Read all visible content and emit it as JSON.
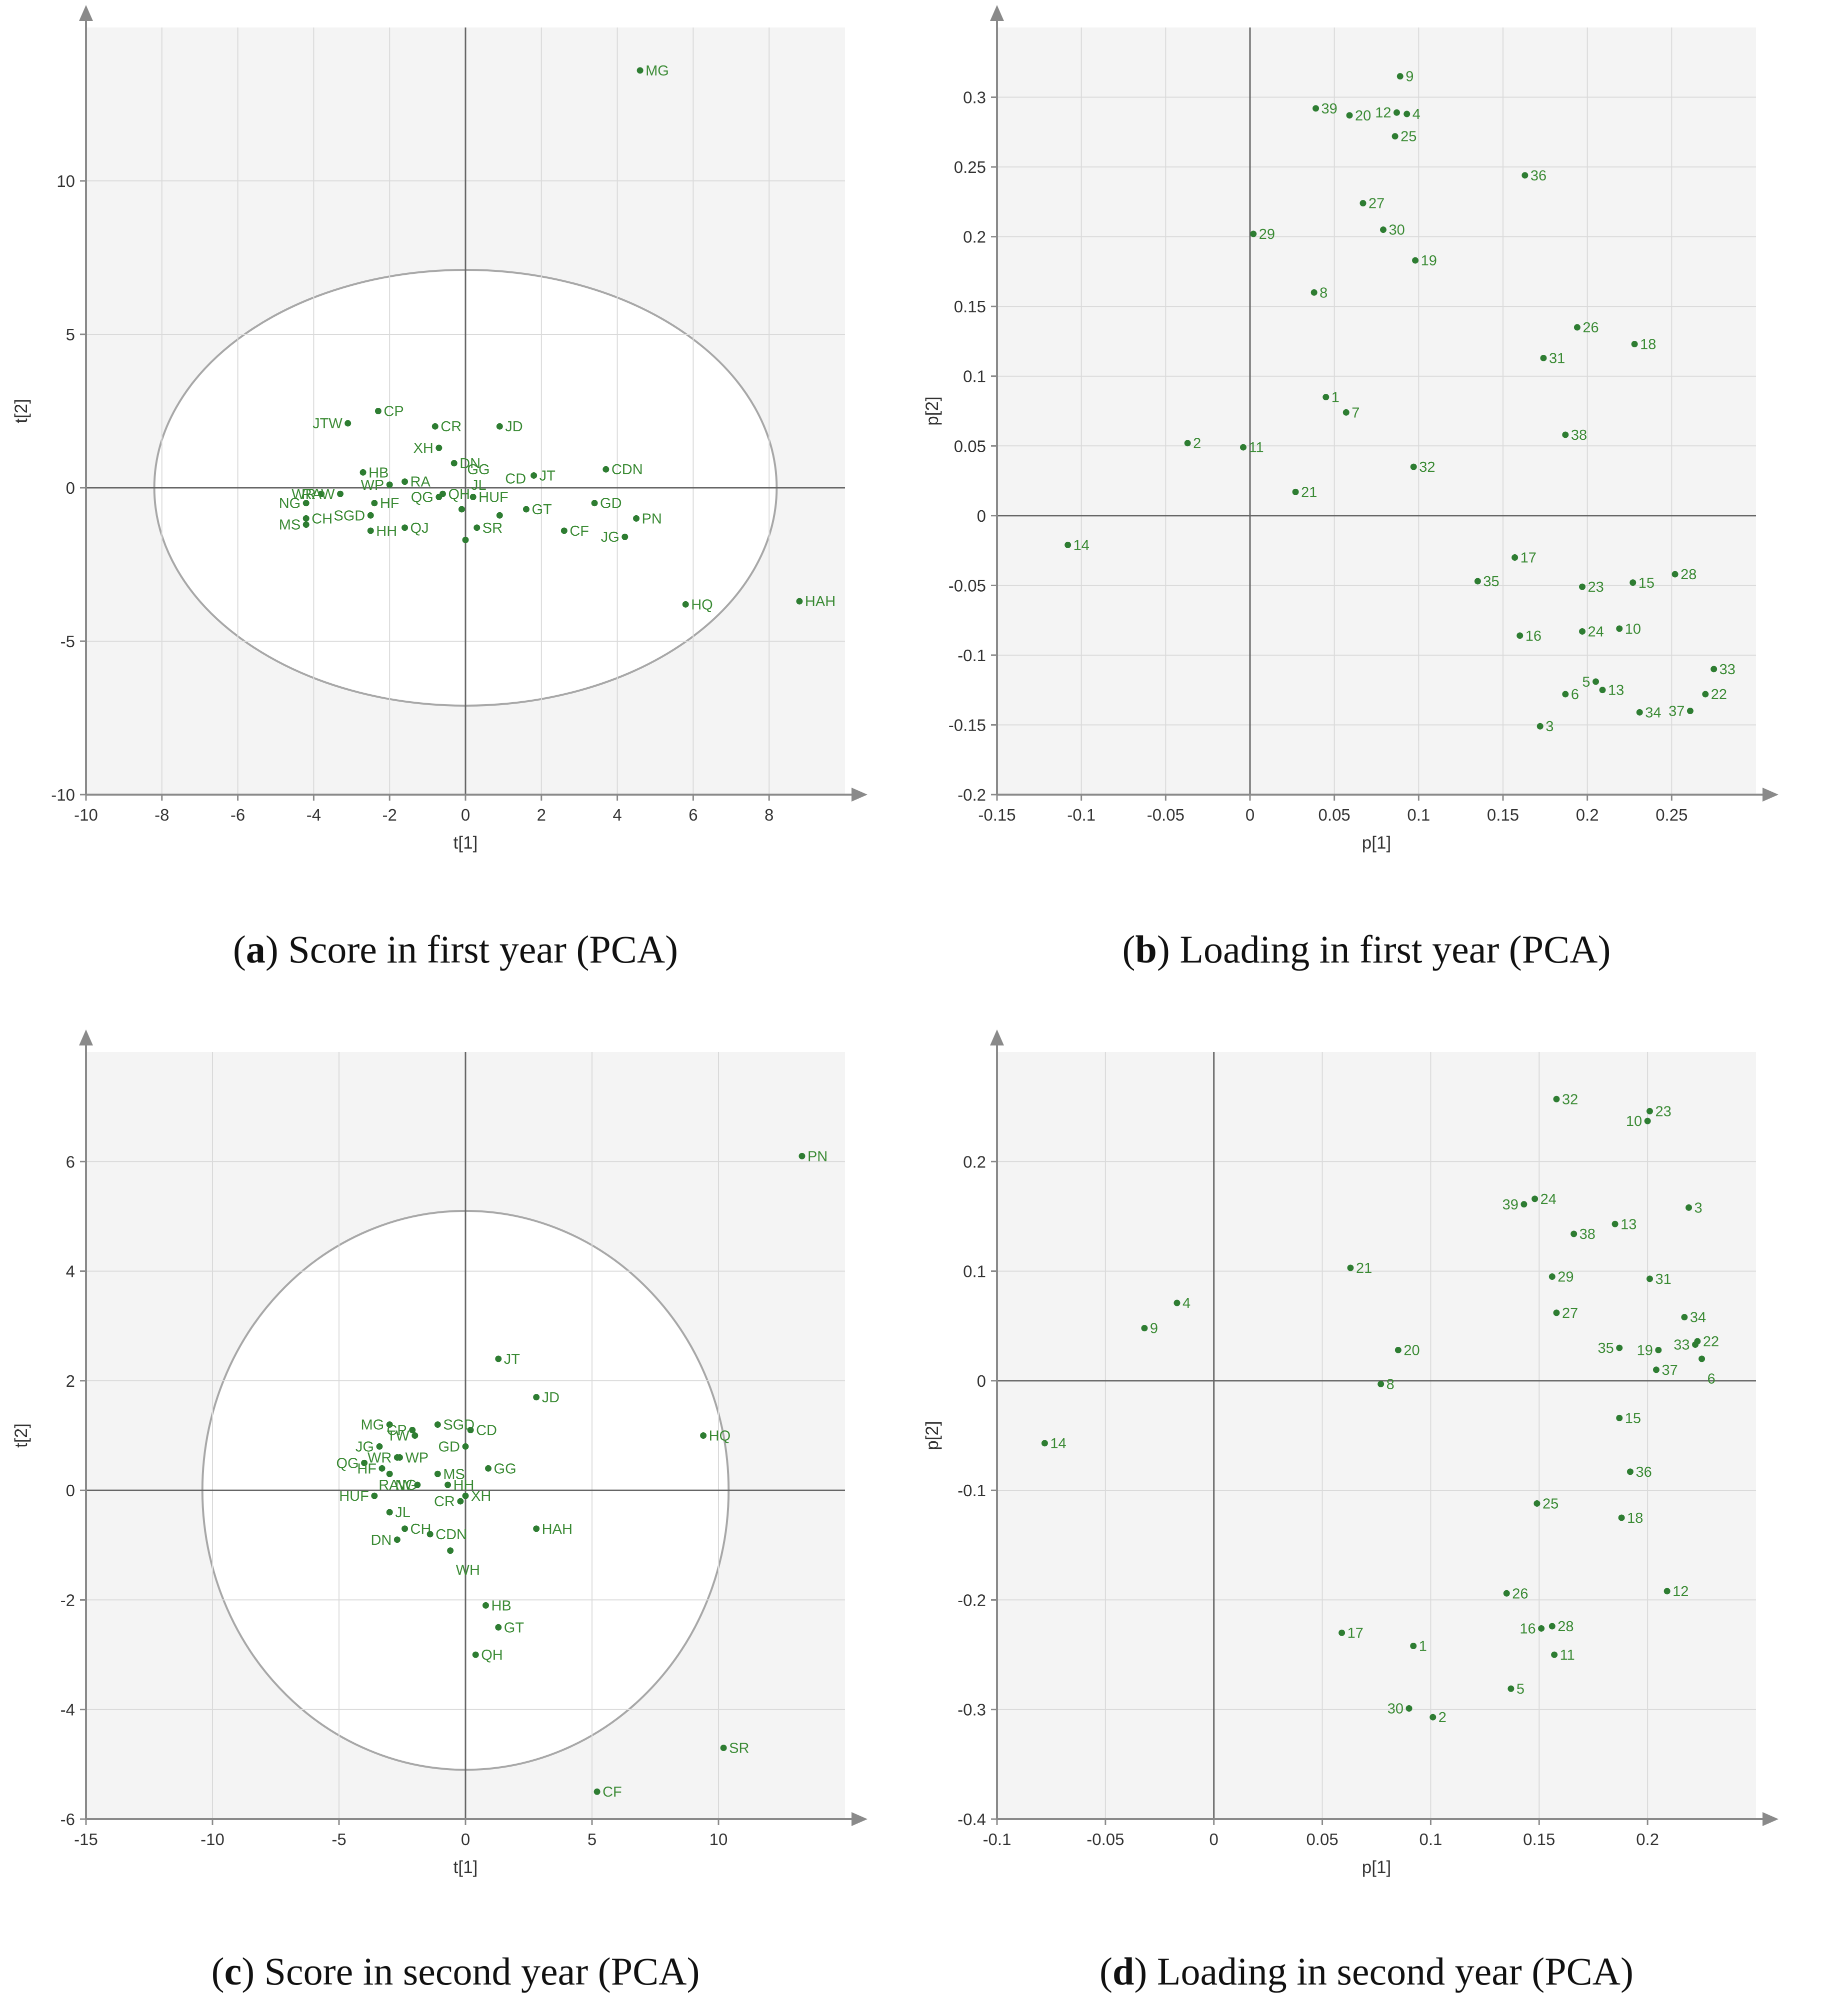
{
  "chart_data": [
    {
      "id": "a",
      "type": "scatter",
      "title": "Score in first year (PCA)",
      "caption_letter": "a",
      "xlabel": "t[1]",
      "ylabel": "t[2]",
      "xlim": [
        -10,
        10
      ],
      "ylim": [
        -10,
        15
      ],
      "xticks": [
        -10,
        -8,
        -6,
        -4,
        -2,
        0,
        2,
        4,
        6,
        8
      ],
      "yticks": [
        -10,
        -5,
        0,
        5,
        10
      ],
      "ellipse": {
        "cx": 0,
        "cy": 0,
        "rx": 8.2,
        "ry": 7.1
      },
      "points": [
        {
          "label": "MG",
          "x": 4.6,
          "y": 13.6
        },
        {
          "label": "CP",
          "x": -2.3,
          "y": 2.5
        },
        {
          "label": "JTW",
          "x": -3.1,
          "y": 2.1,
          "side": "left"
        },
        {
          "label": "CR",
          "x": -0.8,
          "y": 2.0
        },
        {
          "label": "JD",
          "x": 0.9,
          "y": 2.0
        },
        {
          "label": "XH",
          "x": -0.7,
          "y": 1.3,
          "side": "left"
        },
        {
          "label": "DN",
          "x": -0.3,
          "y": 0.8
        },
        {
          "label": "JT",
          "x": 1.8,
          "y": 0.4
        },
        {
          "label": "CDN",
          "x": 3.7,
          "y": 0.6
        },
        {
          "label": "HB",
          "x": -2.7,
          "y": 0.5
        },
        {
          "label": "WR",
          "x": -3.8,
          "y": -0.2,
          "side": "left"
        },
        {
          "label": "RAW",
          "x": -3.3,
          "y": -0.2,
          "side": "left"
        },
        {
          "label": "NG",
          "x": -4.2,
          "y": -0.5,
          "side": "left"
        },
        {
          "label": "WP",
          "x": -2.0,
          "y": 0.1,
          "side": "left"
        },
        {
          "label": "RA",
          "x": -1.6,
          "y": 0.2
        },
        {
          "label": "HF",
          "x": -2.4,
          "y": -0.5
        },
        {
          "label": "QG",
          "x": -0.7,
          "y": -0.3,
          "side": "left"
        },
        {
          "label": "QH",
          "x": -0.6,
          "y": -0.2
        },
        {
          "label": "HUF",
          "x": 0.2,
          "y": -0.3
        },
        {
          "label": "GT",
          "x": 1.6,
          "y": -0.7
        },
        {
          "label": "GD",
          "x": 3.4,
          "y": -0.5
        },
        {
          "label": "PN",
          "x": 4.5,
          "y": -1.0
        },
        {
          "label": "MS",
          "x": -4.2,
          "y": -1.2,
          "side": "left"
        },
        {
          "label": "CH",
          "x": -4.2,
          "y": -1.0
        },
        {
          "label": "SGD",
          "x": -2.5,
          "y": -0.9,
          "side": "left"
        },
        {
          "label": "HH",
          "x": -2.5,
          "y": -1.4
        },
        {
          "label": "QJ",
          "x": -1.6,
          "y": -1.3
        },
        {
          "label": "GG",
          "x": -0.1,
          "y": -0.7,
          "labeldy": 1.3
        },
        {
          "label": "SR",
          "x": 0.3,
          "y": -1.3
        },
        {
          "label": "CD",
          "x": 0.9,
          "y": -0.9,
          "labeldy": 1.2
        },
        {
          "label": "CF",
          "x": 2.6,
          "y": -1.4
        },
        {
          "label": "JG",
          "x": 4.2,
          "y": -1.6,
          "side": "left"
        },
        {
          "label": "JL",
          "x": 0.0,
          "y": -1.7,
          "labeldy": 1.8
        },
        {
          "label": "HQ",
          "x": 5.8,
          "y": -3.8
        },
        {
          "label": "HAH",
          "x": 8.8,
          "y": -3.7
        }
      ]
    },
    {
      "id": "b",
      "type": "scatter",
      "title": "Loading in first year (PCA)",
      "caption_letter": "b",
      "xlabel": "p[1]",
      "ylabel": "p[2]",
      "xlim": [
        -0.15,
        0.3
      ],
      "ylim": [
        -0.2,
        0.35
      ],
      "xticks": [
        -0.15,
        -0.1,
        -0.05,
        0,
        0.05,
        0.1,
        0.15,
        0.2,
        0.25
      ],
      "yticks": [
        -0.2,
        -0.15,
        -0.1,
        -0.05,
        0,
        0.05,
        0.1,
        0.15,
        0.2,
        0.25,
        0.3
      ],
      "points": [
        {
          "label": "9",
          "x": 0.089,
          "y": 0.315
        },
        {
          "label": "39",
          "x": 0.039,
          "y": 0.292
        },
        {
          "label": "20",
          "x": 0.059,
          "y": 0.287
        },
        {
          "label": "12",
          "x": 0.087,
          "y": 0.289,
          "side": "left"
        },
        {
          "label": "4",
          "x": 0.093,
          "y": 0.288
        },
        {
          "label": "25",
          "x": 0.086,
          "y": 0.272
        },
        {
          "label": "36",
          "x": 0.163,
          "y": 0.244
        },
        {
          "label": "27",
          "x": 0.067,
          "y": 0.224
        },
        {
          "label": "30",
          "x": 0.079,
          "y": 0.205
        },
        {
          "label": "29",
          "x": 0.002,
          "y": 0.202
        },
        {
          "label": "19",
          "x": 0.098,
          "y": 0.183
        },
        {
          "label": "8",
          "x": 0.038,
          "y": 0.16
        },
        {
          "label": "26",
          "x": 0.194,
          "y": 0.135
        },
        {
          "label": "18",
          "x": 0.228,
          "y": 0.123
        },
        {
          "label": "31",
          "x": 0.174,
          "y": 0.113
        },
        {
          "label": "1",
          "x": 0.045,
          "y": 0.085
        },
        {
          "label": "7",
          "x": 0.057,
          "y": 0.074
        },
        {
          "label": "38",
          "x": 0.187,
          "y": 0.058
        },
        {
          "label": "2",
          "x": -0.037,
          "y": 0.052
        },
        {
          "label": "11",
          "x": -0.004,
          "y": 0.049
        },
        {
          "label": "32",
          "x": 0.097,
          "y": 0.035
        },
        {
          "label": "21",
          "x": 0.027,
          "y": 0.017
        },
        {
          "label": "14",
          "x": -0.108,
          "y": -0.021
        },
        {
          "label": "17",
          "x": 0.157,
          "y": -0.03
        },
        {
          "label": "35",
          "x": 0.135,
          "y": -0.047
        },
        {
          "label": "28",
          "x": 0.252,
          "y": -0.042
        },
        {
          "label": "23",
          "x": 0.197,
          "y": -0.051
        },
        {
          "label": "15",
          "x": 0.227,
          "y": -0.048
        },
        {
          "label": "10",
          "x": 0.219,
          "y": -0.081
        },
        {
          "label": "24",
          "x": 0.197,
          "y": -0.083
        },
        {
          "label": "16",
          "x": 0.16,
          "y": -0.086
        },
        {
          "label": "33",
          "x": 0.275,
          "y": -0.11
        },
        {
          "label": "5",
          "x": 0.205,
          "y": -0.119,
          "side": "left"
        },
        {
          "label": "13",
          "x": 0.209,
          "y": -0.125
        },
        {
          "label": "6",
          "x": 0.187,
          "y": -0.128
        },
        {
          "label": "22",
          "x": 0.27,
          "y": -0.128
        },
        {
          "label": "34",
          "x": 0.231,
          "y": -0.141
        },
        {
          "label": "37",
          "x": 0.261,
          "y": -0.14,
          "side": "left"
        },
        {
          "label": "3",
          "x": 0.172,
          "y": -0.151
        }
      ]
    },
    {
      "id": "c",
      "type": "scatter",
      "title": "Score in second year (PCA)",
      "caption_letter": "c",
      "xlabel": "t[1]",
      "ylabel": "t[2]",
      "xlim": [
        -15,
        15
      ],
      "ylim": [
        -6,
        8
      ],
      "xticks": [
        -15,
        -10,
        -5,
        0,
        5,
        10
      ],
      "yticks": [
        -6,
        -4,
        -2,
        0,
        2,
        4,
        6
      ],
      "ellipse": {
        "cx": 0,
        "cy": 0,
        "rx": 10.4,
        "ry": 5.1
      },
      "points": [
        {
          "label": "PN",
          "x": 13.3,
          "y": 6.1
        },
        {
          "label": "JT",
          "x": 1.3,
          "y": 2.4
        },
        {
          "label": "JD",
          "x": 2.8,
          "y": 1.7
        },
        {
          "label": "HQ",
          "x": 9.4,
          "y": 1.0
        },
        {
          "label": "MG",
          "x": -3.0,
          "y": 1.2,
          "side": "left"
        },
        {
          "label": "CP",
          "x": -2.1,
          "y": 1.1,
          "side": "left"
        },
        {
          "label": "TW",
          "x": -2.0,
          "y": 1.0,
          "side": "left"
        },
        {
          "label": "SGD",
          "x": -1.1,
          "y": 1.2
        },
        {
          "label": "CD",
          "x": 0.2,
          "y": 1.1
        },
        {
          "label": "JG",
          "x": -3.4,
          "y": 0.8,
          "side": "left"
        },
        {
          "label": "GD",
          "x": 0.0,
          "y": 0.8,
          "side": "left"
        },
        {
          "label": "WP",
          "x": -2.6,
          "y": 0.6
        },
        {
          "label": "WR",
          "x": -2.7,
          "y": 0.6,
          "side": "left"
        },
        {
          "label": "QG",
          "x": -4.0,
          "y": 0.5,
          "side": "left"
        },
        {
          "label": "HF",
          "x": -3.3,
          "y": 0.4,
          "side": "left"
        },
        {
          "label": "GG",
          "x": 0.9,
          "y": 0.4
        },
        {
          "label": "MS",
          "x": -1.1,
          "y": 0.3
        },
        {
          "label": "NG",
          "x": -3.0,
          "y": 0.3,
          "labeldy": -0.2
        },
        {
          "label": "RAW",
          "x": -1.9,
          "y": 0.1,
          "side": "left"
        },
        {
          "label": "HH",
          "x": -0.7,
          "y": 0.1
        },
        {
          "label": "HUF",
          "x": -3.6,
          "y": -0.1,
          "side": "left"
        },
        {
          "label": "CR",
          "x": -0.2,
          "y": -0.2,
          "side": "left"
        },
        {
          "label": "XH",
          "x": 0.0,
          "y": -0.1
        },
        {
          "label": "JL",
          "x": -3.0,
          "y": -0.4
        },
        {
          "label": "HAH",
          "x": 2.8,
          "y": -0.7
        },
        {
          "label": "CH",
          "x": -2.4,
          "y": -0.7
        },
        {
          "label": "CDN",
          "x": -1.4,
          "y": -0.8
        },
        {
          "label": "DN",
          "x": -2.7,
          "y": -0.9,
          "side": "left"
        },
        {
          "label": "WH",
          "x": -0.6,
          "y": -1.1,
          "labeldy": -0.35
        },
        {
          "label": "HB",
          "x": 0.8,
          "y": -2.1
        },
        {
          "label": "GT",
          "x": 1.3,
          "y": -2.5
        },
        {
          "label": "QH",
          "x": 0.4,
          "y": -3.0
        },
        {
          "label": "SR",
          "x": 10.2,
          "y": -4.7
        },
        {
          "label": "CF",
          "x": 5.2,
          "y": -5.5
        }
      ]
    },
    {
      "id": "d",
      "type": "scatter",
      "title": "Loading in second year (PCA)",
      "caption_letter": "d",
      "xlabel": "p[1]",
      "ylabel": "p[2]",
      "xlim": [
        -0.1,
        0.25
      ],
      "ylim": [
        -0.4,
        0.3
      ],
      "xticks": [
        -0.1,
        -0.05,
        0,
        0.05,
        0.1,
        0.15,
        0.2
      ],
      "yticks": [
        -0.4,
        -0.3,
        -0.2,
        -0.1,
        0,
        0.1,
        0.2
      ],
      "points": [
        {
          "label": "32",
          "x": 0.158,
          "y": 0.257
        },
        {
          "label": "23",
          "x": 0.201,
          "y": 0.246
        },
        {
          "label": "10",
          "x": 0.2,
          "y": 0.237,
          "side": "left"
        },
        {
          "label": "3",
          "x": 0.219,
          "y": 0.158
        },
        {
          "label": "24",
          "x": 0.148,
          "y": 0.166
        },
        {
          "label": "39",
          "x": 0.143,
          "y": 0.161,
          "side": "left"
        },
        {
          "label": "13",
          "x": 0.185,
          "y": 0.143
        },
        {
          "label": "38",
          "x": 0.166,
          "y": 0.134
        },
        {
          "label": "21",
          "x": 0.063,
          "y": 0.103
        },
        {
          "label": "29",
          "x": 0.156,
          "y": 0.095
        },
        {
          "label": "31",
          "x": 0.201,
          "y": 0.093
        },
        {
          "label": "4",
          "x": -0.017,
          "y": 0.071
        },
        {
          "label": "27",
          "x": 0.158,
          "y": 0.062
        },
        {
          "label": "34",
          "x": 0.217,
          "y": 0.058
        },
        {
          "label": "9",
          "x": -0.032,
          "y": 0.048
        },
        {
          "label": "22",
          "x": 0.223,
          "y": 0.036
        },
        {
          "label": "33",
          "x": 0.222,
          "y": 0.033,
          "side": "left"
        },
        {
          "label": "35",
          "x": 0.187,
          "y": 0.03,
          "side": "left"
        },
        {
          "label": "19",
          "x": 0.205,
          "y": 0.028,
          "side": "left"
        },
        {
          "label": "20",
          "x": 0.085,
          "y": 0.028
        },
        {
          "label": "6",
          "x": 0.225,
          "y": 0.02,
          "labeldy": -0.018
        },
        {
          "label": "37",
          "x": 0.204,
          "y": 0.01
        },
        {
          "label": "8",
          "x": 0.077,
          "y": -0.003
        },
        {
          "label": "15",
          "x": 0.187,
          "y": -0.034
        },
        {
          "label": "14",
          "x": -0.078,
          "y": -0.057
        },
        {
          "label": "36",
          "x": 0.192,
          "y": -0.083
        },
        {
          "label": "25",
          "x": 0.149,
          "y": -0.112
        },
        {
          "label": "18",
          "x": 0.188,
          "y": -0.125
        },
        {
          "label": "12",
          "x": 0.209,
          "y": -0.192
        },
        {
          "label": "26",
          "x": 0.135,
          "y": -0.194
        },
        {
          "label": "28",
          "x": 0.156,
          "y": -0.224
        },
        {
          "label": "16",
          "x": 0.151,
          "y": -0.226,
          "side": "left"
        },
        {
          "label": "17",
          "x": 0.059,
          "y": -0.23
        },
        {
          "label": "1",
          "x": 0.092,
          "y": -0.242
        },
        {
          "label": "11",
          "x": 0.157,
          "y": -0.25
        },
        {
          "label": "5",
          "x": 0.137,
          "y": -0.281
        },
        {
          "label": "30",
          "x": 0.09,
          "y": -0.299,
          "side": "left"
        },
        {
          "label": "2",
          "x": 0.101,
          "y": -0.307
        }
      ]
    }
  ],
  "captions": [
    {
      "letter": "a",
      "text": ") Score in first year (PCA)"
    },
    {
      "letter": "b",
      "text": ") Loading in first year (PCA)"
    },
    {
      "letter": "c",
      "text": ") Score in second year (PCA)"
    },
    {
      "letter": "d",
      "text": ") Loading in second year (PCA)"
    }
  ],
  "colors": {
    "point": "#2e7d32",
    "label": "#3a8a34",
    "plot_bg": "#f4f4f4",
    "grid": "#dadada",
    "axis": "#8a8a8a"
  }
}
